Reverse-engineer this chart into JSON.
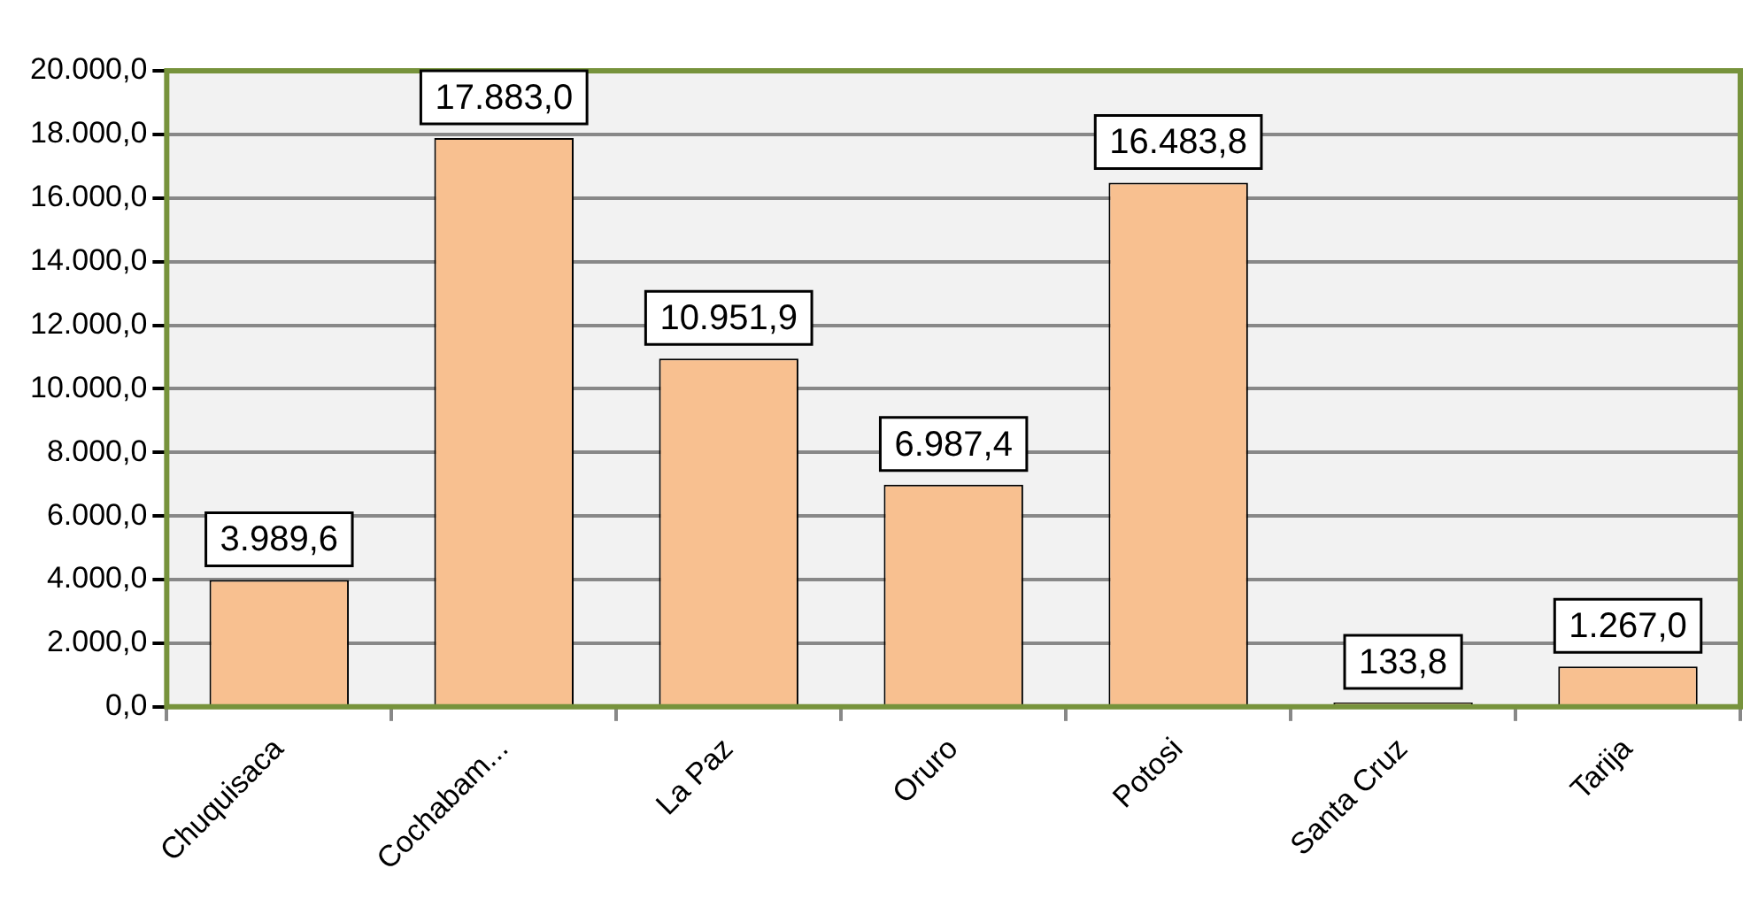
{
  "chart_data": {
    "type": "bar",
    "categories": [
      "Chuquisaca",
      "Cochabam...",
      "La Paz",
      "Oruro",
      "Potosi",
      "Santa Cruz",
      "Tarija"
    ],
    "values": [
      3989.6,
      17883.0,
      10951.9,
      6987.4,
      16483.8,
      133.8,
      1267.0
    ],
    "value_labels": [
      "3.989,6",
      "17.883,0",
      "10.951,9",
      "6.987,4",
      "16.483,8",
      "133,8",
      "1.267,0"
    ],
    "color": "#f8c090",
    "ylim": [
      0,
      20000
    ],
    "yticks": [
      {
        "value": 0,
        "label": "0,0"
      },
      {
        "value": 2000,
        "label": "2.000,0"
      },
      {
        "value": 4000,
        "label": "4.000,0"
      },
      {
        "value": 6000,
        "label": "6.000,0"
      },
      {
        "value": 8000,
        "label": "8.000,0"
      },
      {
        "value": 10000,
        "label": "10.000,0"
      },
      {
        "value": 12000,
        "label": "12.000,0"
      },
      {
        "value": 14000,
        "label": "14.000,0"
      },
      {
        "value": 16000,
        "label": "16.000,0"
      },
      {
        "value": 18000,
        "label": "18.000,0"
      },
      {
        "value": 20000,
        "label": "20.000,0"
      }
    ],
    "grid": "y",
    "legend": false
  }
}
